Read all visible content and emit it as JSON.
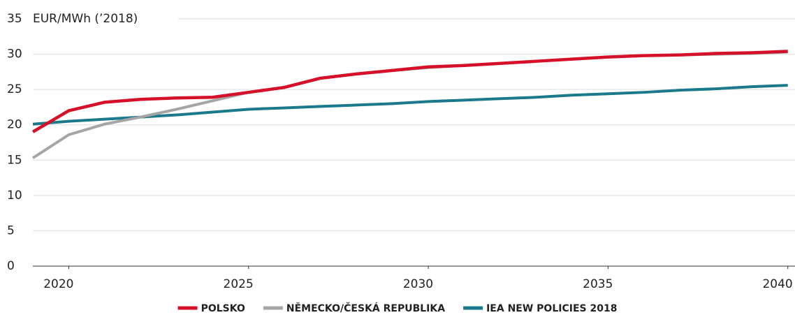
{
  "chart_data": {
    "type": "line",
    "y_axis_label": "EUR/MWh (’2018)",
    "x": [
      2019,
      2020,
      2021,
      2022,
      2023,
      2024,
      2025,
      2026,
      2027,
      2028,
      2029,
      2030,
      2031,
      2032,
      2033,
      2034,
      2035,
      2036,
      2037,
      2038,
      2039,
      2040
    ],
    "series": [
      {
        "name": "POLSKO",
        "color": "#d7102a",
        "values": [
          19,
          22,
          23.2,
          23.6,
          23.8,
          23.9,
          24.6,
          25.3,
          26.6,
          27.2,
          27.7,
          28.2,
          28.4,
          28.7,
          29.0,
          29.3,
          29.6,
          29.8,
          29.9,
          30.1,
          30.2,
          30.4
        ]
      },
      {
        "name": "NĚMECKO/ČESKÁ REPUBLIKA",
        "color": "#a5a5a5",
        "values": [
          15.3,
          18.6,
          20.1,
          21.1,
          22.2,
          23.4,
          24.6,
          25.3,
          26.6,
          27.2,
          27.7,
          28.1,
          28.4,
          28.7,
          29.0,
          29.3,
          29.6,
          29.8,
          29.9,
          30.0,
          30.1,
          30.3
        ]
      },
      {
        "name": "IEA NEW POLICIES 2018",
        "color": "#1a7a8c",
        "values": [
          20.1,
          20.5,
          20.8,
          21.1,
          21.4,
          21.8,
          22.2,
          22.4,
          22.6,
          22.8,
          23.0,
          23.3,
          23.5,
          23.7,
          23.9,
          24.2,
          24.4,
          24.6,
          24.9,
          25.1,
          25.4,
          25.6
        ]
      }
    ],
    "xlim": [
      2019,
      2040.2
    ],
    "xticks": [
      2020,
      2025,
      2030,
      2035,
      2040
    ],
    "ylim": [
      0,
      35
    ],
    "yticks": [
      0,
      5,
      10,
      15,
      20,
      25,
      30,
      35
    ],
    "grid": true,
    "legend": "bottom"
  }
}
